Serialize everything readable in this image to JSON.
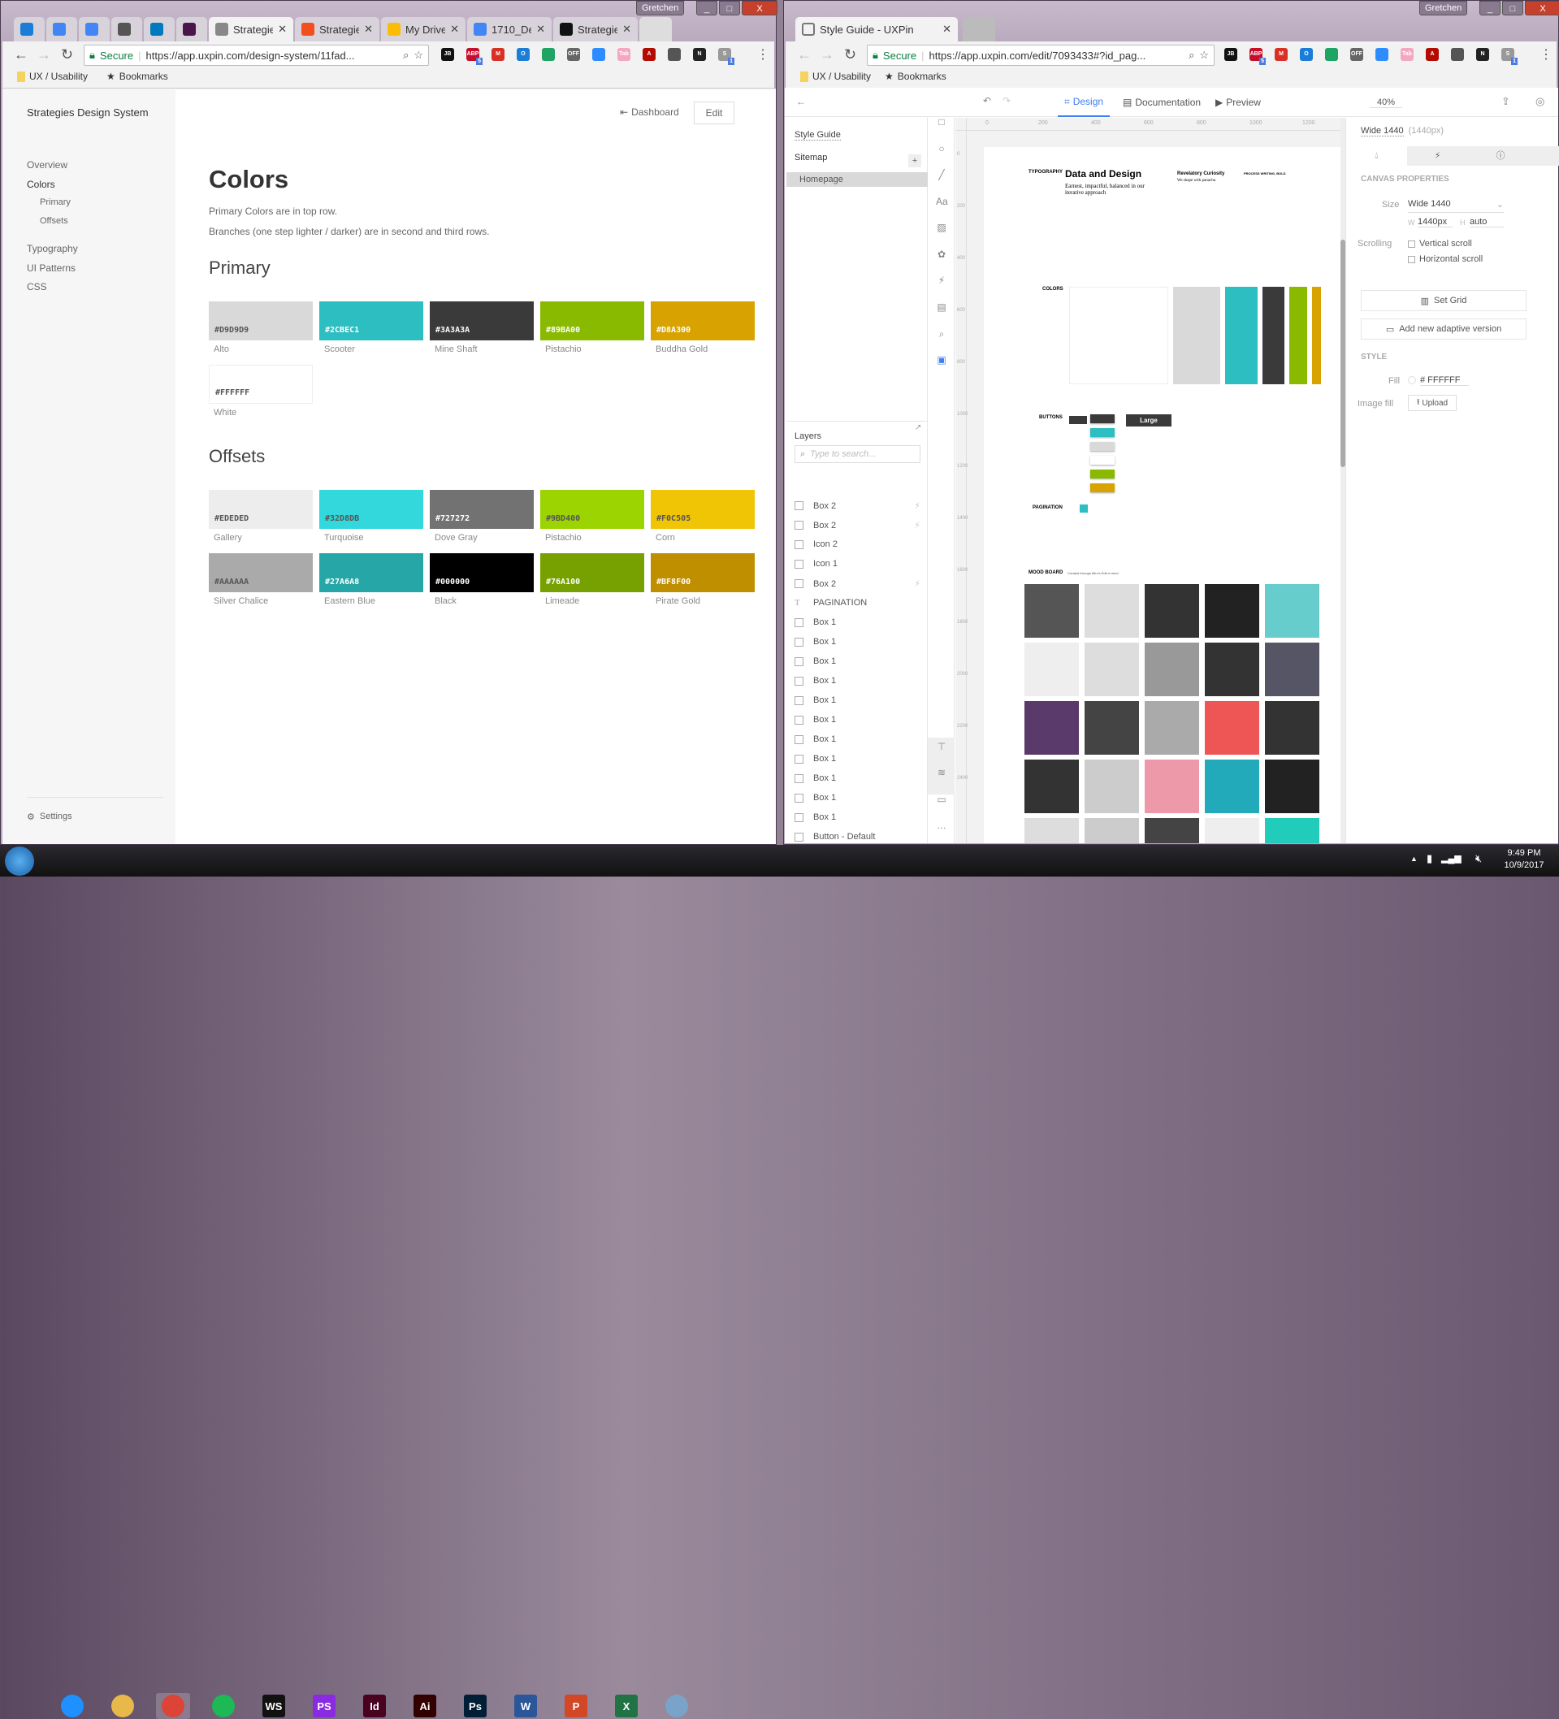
{
  "left_window": {
    "user": "Gretchen",
    "tabs": [
      {
        "label": "",
        "icon": "uxpin-o-icon",
        "color": "#1a7ed8"
      },
      {
        "label": "",
        "icon": "google-icon",
        "color": "#4285f4"
      },
      {
        "label": "",
        "icon": "google-icon",
        "color": "#4285f4"
      },
      {
        "label": "",
        "icon": "power-icon",
        "color": "#555555"
      },
      {
        "label": "",
        "icon": "trello-icon",
        "color": "#0079bf"
      },
      {
        "label": "",
        "icon": "slack-hash-icon",
        "color": "#4a154b"
      },
      {
        "label": "Strategie",
        "icon": "page-icon",
        "color": "#888888",
        "active": true
      },
      {
        "label": "Strategie",
        "icon": "figma-icon",
        "color": "#f24e1e"
      },
      {
        "label": "My Drive",
        "icon": "drive-icon",
        "color": "#fbbc04"
      },
      {
        "label": "1710_De",
        "icon": "docs-icon",
        "color": "#4285f4"
      },
      {
        "label": "Strategie",
        "icon": "webstorm-icon",
        "color": "#111111"
      }
    ],
    "address": {
      "secure": "Secure",
      "url": "https://app.uxpin.com/design-system/11fad..."
    },
    "bookmarks": [
      {
        "label": "UX / Usability",
        "icon": "folder-icon"
      },
      {
        "label": "Bookmarks",
        "icon": "star-icon"
      }
    ],
    "extensions": [
      {
        "label": "JB",
        "color": "#111111"
      },
      {
        "label": "ABP",
        "color": "#c70d2c",
        "badge": "5"
      },
      {
        "label": "M",
        "color": "#d93025"
      },
      {
        "label": "O",
        "color": "#1a7ed8"
      },
      {
        "label": "",
        "color": "#1fa463"
      },
      {
        "label": "OFF",
        "color": "#666666"
      },
      {
        "label": "",
        "color": "#2d8cff"
      },
      {
        "label": "Tab",
        "color": "#f4a8c0"
      },
      {
        "label": "A",
        "color": "#b30b00"
      },
      {
        "label": "",
        "color": "#555555"
      },
      {
        "label": "N",
        "color": "#222222"
      },
      {
        "label": "S",
        "color": "#999999",
        "badge": "1"
      }
    ],
    "app": {
      "title": "Strategies Design System",
      "dashboard": "Dashboard",
      "edit": "Edit",
      "nav": [
        "Overview",
        "Colors",
        "Primary",
        "Offsets",
        "Typography",
        "UI Patterns",
        "CSS"
      ],
      "settings": "Settings",
      "heading": "Colors",
      "desc1": "Primary Colors are in top row.",
      "desc2": "Branches (one step lighter / darker) are in second and third rows.",
      "primary_title": "Primary",
      "offsets_title": "Offsets",
      "primary": [
        {
          "hex": "#D9D9D9",
          "name": "Alto",
          "text": "#555555"
        },
        {
          "hex": "#2CBEC1",
          "name": "Scooter",
          "text": "#ffffff"
        },
        {
          "hex": "#3A3A3A",
          "name": "Mine Shaft",
          "text": "#ffffff"
        },
        {
          "hex": "#89BA00",
          "name": "Pistachio",
          "text": "#ffffff"
        },
        {
          "hex": "#D8A300",
          "name": "Buddha Gold",
          "text": "#ffffff"
        },
        {
          "hex": "#FFFFFF",
          "name": "White",
          "text": "#555555"
        }
      ],
      "offsets1": [
        {
          "hex": "#EDEDED",
          "name": "Gallery",
          "text": "#555555"
        },
        {
          "hex": "#32D8DB",
          "name": "Turquoise",
          "text": "#555555"
        },
        {
          "hex": "#727272",
          "name": "Dove Gray",
          "text": "#ffffff"
        },
        {
          "hex": "#9BD400",
          "name": "Pistachio",
          "text": "#555555"
        },
        {
          "hex": "#F0C505",
          "name": "Corn",
          "text": "#555555"
        }
      ],
      "offsets2": [
        {
          "hex": "#AAAAAA",
          "name": "Silver Chalice",
          "text": "#555555"
        },
        {
          "hex": "#27A6A8",
          "name": "Eastern Blue",
          "text": "#ffffff"
        },
        {
          "hex": "#000000",
          "name": "Black",
          "text": "#ffffff"
        },
        {
          "hex": "#76A100",
          "name": "Limeade",
          "text": "#ffffff"
        },
        {
          "hex": "#BF8F00",
          "name": "Pirate Gold",
          "text": "#ffffff"
        }
      ]
    }
  },
  "right_window": {
    "user": "Gretchen",
    "tab": "Style Guide - UXPin",
    "address": {
      "secure": "Secure",
      "url": "https://app.uxpin.com/edit/7093433#?id_pag..."
    },
    "bookmarks": [
      {
        "label": "UX / Usability"
      },
      {
        "label": "Bookmarks"
      }
    ],
    "toolbar": {
      "design": "Design",
      "documentation": "Documentation",
      "preview": "Preview",
      "zoom": "40%"
    },
    "sidebar": {
      "style_guide": "Style Guide",
      "sitemap": "Sitemap",
      "add": "+",
      "homepage": "Homepage",
      "layers": "Layers",
      "search_placeholder": "Type to search...",
      "layers_list": [
        {
          "n": "Box 2",
          "t": "box",
          "bolt": true
        },
        {
          "n": "Box 2",
          "t": "box",
          "bolt": true
        },
        {
          "n": "Icon 2",
          "t": "box"
        },
        {
          "n": "Icon 1",
          "t": "box"
        },
        {
          "n": "Box 2",
          "t": "box",
          "bolt": true
        },
        {
          "n": "PAGINATION",
          "t": "text"
        },
        {
          "n": "Box 1",
          "t": "box"
        },
        {
          "n": "Box 1",
          "t": "box"
        },
        {
          "n": "Box 1",
          "t": "box"
        },
        {
          "n": "Box 1",
          "t": "box"
        },
        {
          "n": "Box 1",
          "t": "box"
        },
        {
          "n": "Box 1",
          "t": "box"
        },
        {
          "n": "Box 1",
          "t": "box"
        },
        {
          "n": "Box 1",
          "t": "box"
        },
        {
          "n": "Box 1",
          "t": "box"
        },
        {
          "n": "Box 1",
          "t": "box"
        },
        {
          "n": "Box 1",
          "t": "box"
        },
        {
          "n": "Button - Default",
          "t": "box"
        }
      ]
    },
    "ruler_x": [
      "0",
      "200",
      "400",
      "600",
      "800",
      "1000",
      "1200",
      "1400"
    ],
    "ruler_y": [
      "0",
      "200",
      "400",
      "600",
      "800",
      "1000",
      "1200",
      "1400",
      "1600",
      "1800",
      "2000",
      "2200",
      "2400"
    ],
    "canvas": {
      "typography": "TYPOGRAPHY",
      "headline": "Data and Design",
      "subhead": "Earnest, impactful, balanced in our iterative approach",
      "col2_title": "Revelatory Curiosity",
      "col2_sub": "We shape with panache.",
      "col3_title": "PROCESS WRITING, BOLD",
      "colors": "COLORS",
      "buttons": "BUTTONS",
      "large": "Large",
      "pagination": "PAGINATION",
      "mood_board": "MOOD BOARD",
      "mood_sub": "Created through Miro's Edit in mind",
      "color_bars": [
        "#D9D9D9",
        "#2CBEC1",
        "#3A3A3A",
        "#89BA00",
        "#D8A300"
      ],
      "button_colors": [
        "#3A3A3A",
        "#2CBEC1",
        "#D9D9D9",
        "#FFFFFF",
        "#89BA00",
        "#D8A300"
      ]
    },
    "props": {
      "breakpoint": "Wide 1440",
      "breakpoint_px": "(1440px)",
      "canvas_properties": "CANVAS PROPERTIES",
      "size_label": "Size",
      "size_value": "Wide 1440",
      "w_label": "W",
      "w_value": "1440px",
      "h_label": "H",
      "h_value": "auto",
      "scrolling": "Scrolling",
      "vertical": "Vertical scroll",
      "horizontal": "Horizontal scroll",
      "set_grid": "Set Grid",
      "adaptive": "Add new adaptive version",
      "style": "STYLE",
      "fill_label": "Fill",
      "fill_value": "# FFFFFF",
      "image_fill": "Image fill",
      "upload": "Upload"
    }
  },
  "taskbar": {
    "apps": [
      {
        "label": "",
        "color": "#1e90ff",
        "icon": "ie-icon"
      },
      {
        "label": "",
        "color": "#e8b84a",
        "icon": "explorer-icon"
      },
      {
        "label": "",
        "color": "#db4437",
        "icon": "chrome-icon",
        "active": true
      },
      {
        "label": "",
        "color": "#1db954",
        "icon": "spotify-icon"
      },
      {
        "label": "WS",
        "color": "#111111",
        "icon": "webstorm-icon"
      },
      {
        "label": "PS",
        "color": "#8a2be2",
        "icon": "phpstorm-icon"
      },
      {
        "label": "Id",
        "color": "#49021f",
        "icon": "indesign-icon"
      },
      {
        "label": "Ai",
        "color": "#330000",
        "icon": "illustrator-icon"
      },
      {
        "label": "Ps",
        "color": "#001e36",
        "icon": "photoshop-icon"
      },
      {
        "label": "W",
        "color": "#2b579a",
        "icon": "word-icon"
      },
      {
        "label": "P",
        "color": "#d24726",
        "icon": "powerpoint-icon"
      },
      {
        "label": "X",
        "color": "#217346",
        "icon": "excel-icon"
      },
      {
        "label": "",
        "color": "#7aa3c9",
        "icon": "paint-icon"
      }
    ],
    "time": "9:49 PM",
    "date": "10/9/2017"
  }
}
